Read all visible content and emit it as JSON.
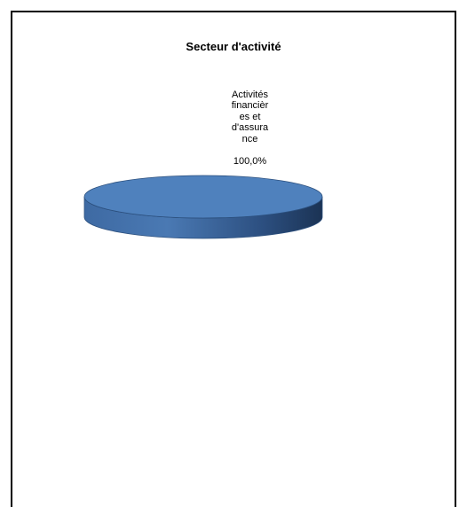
{
  "chart_data": {
    "type": "pie",
    "title": "Secteur d'activité",
    "categories": [
      "Activités financières et d'assurance"
    ],
    "values": [
      100.0
    ],
    "data_labels": [
      {
        "category_text": "Activités\nfinancièr\nes et\nd'assura\nnce",
        "value_text": "100,0%"
      }
    ],
    "colors": {
      "slice_top": "#4f81bd",
      "slice_side_dark": "#1f3c62",
      "slice_side_light": "#4a79b3",
      "outline": "#2b4f7d"
    }
  }
}
